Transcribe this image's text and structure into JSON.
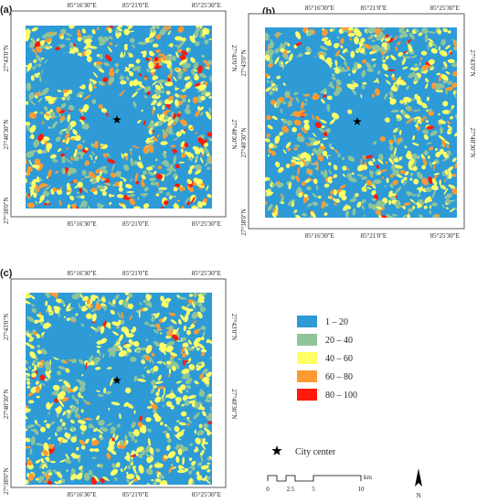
{
  "panels": [
    {
      "label": "(a)"
    },
    {
      "label": "(b)"
    },
    {
      "label": "(c)"
    }
  ],
  "lon_labels": [
    "85°16'30\"E",
    "85°21'0\"E",
    "85°25'30\"E"
  ],
  "lat_labels": [
    "27°43'0\"N",
    "27°40'30\"N",
    "27°38'0\"N"
  ],
  "legend": [
    {
      "label": "1 – 20",
      "color": "#2e9bd6"
    },
    {
      "label": "20 – 40",
      "color": "#8fc49a"
    },
    {
      "label": "40 – 60",
      "color": "#ffff66"
    },
    {
      "label": "60 – 80",
      "color": "#ff9a33"
    },
    {
      "label": "80 – 100",
      "color": "#ff1a0a"
    }
  ],
  "city_center": "City center",
  "scale": {
    "ticks": [
      "0",
      "2.5",
      "5",
      "10"
    ],
    "unit": "km"
  },
  "north": "N"
}
